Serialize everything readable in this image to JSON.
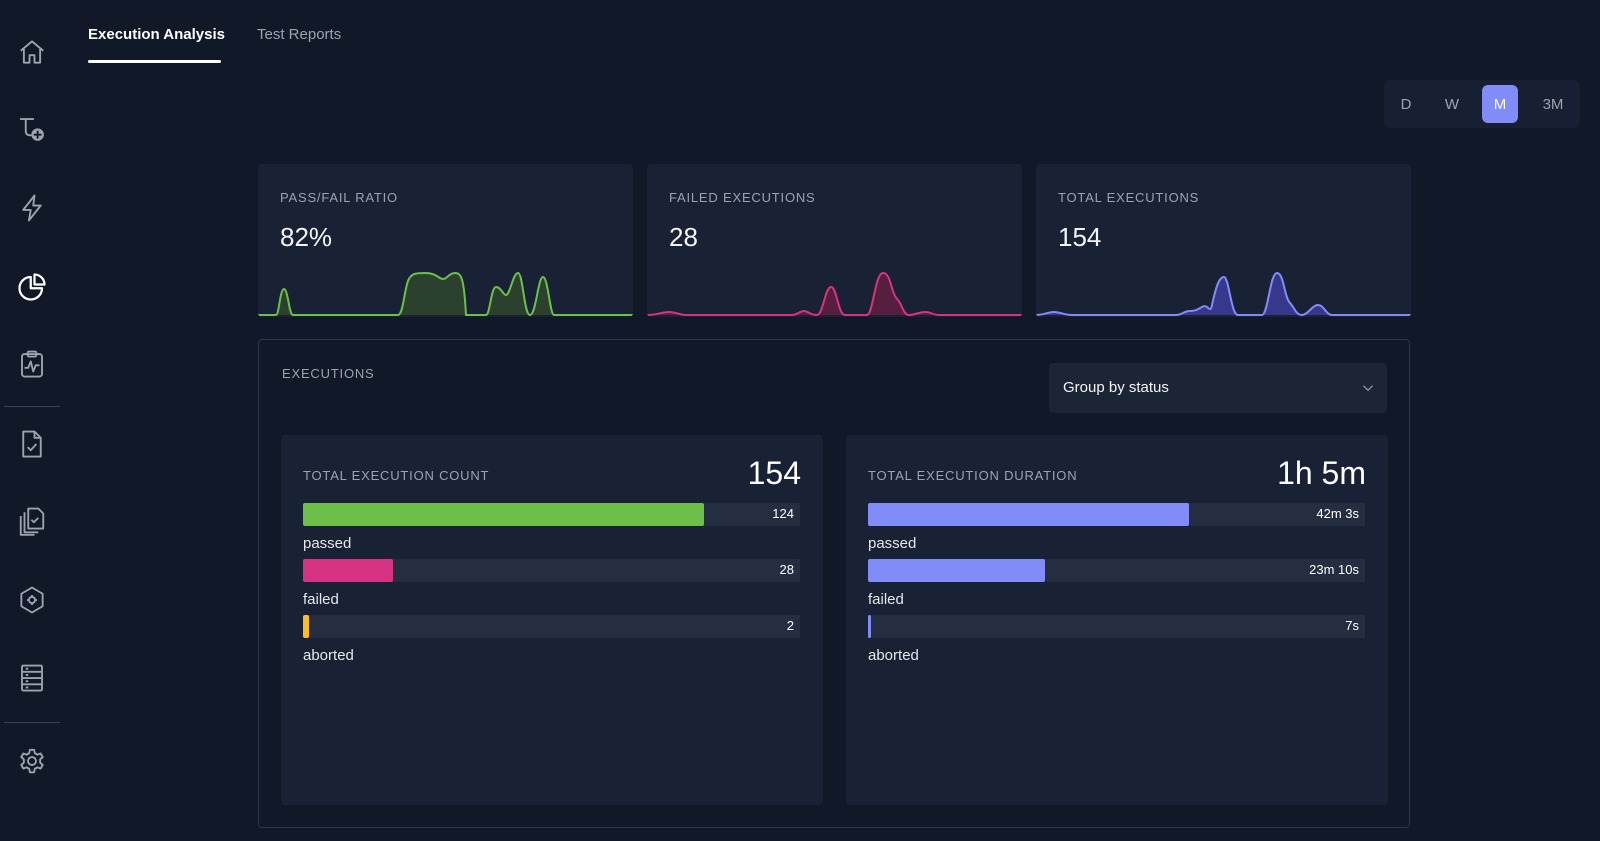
{
  "tabs": [
    {
      "label": "Execution Analysis",
      "active": true
    },
    {
      "label": "Test Reports",
      "active": false
    }
  ],
  "sidebar": {
    "icons": [
      "home-icon",
      "add-flow-icon",
      "lightning-icon",
      "pie-chart-icon",
      "clipboard-pulse-icon",
      "document-check-icon",
      "documents-check-icon",
      "shield-gear-icon",
      "server-icon",
      "gear-icon"
    ],
    "active": "pie-chart-icon"
  },
  "time_range": {
    "options": [
      "D",
      "W",
      "M",
      "3M"
    ],
    "selected": "M"
  },
  "stats": [
    {
      "label": "PASS/FAIL RATIO",
      "value": "82%",
      "color": "#6cc04a",
      "fill": "#2f4a2c"
    },
    {
      "label": "FAILED EXECUTIONS",
      "value": "28",
      "color": "#d63384",
      "fill": "#5e1f40"
    },
    {
      "label": "TOTAL EXECUTIONS",
      "value": "154",
      "color": "#818cf8",
      "fill": "#3b3a95"
    }
  ],
  "executions": {
    "title": "EXECUTIONS",
    "group_by": "Group by status",
    "count": {
      "label": "TOTAL EXECUTION COUNT",
      "total": "154",
      "rows": [
        {
          "name": "passed",
          "value": "124",
          "fraction": 0.806,
          "color": "#6cc04a"
        },
        {
          "name": "failed",
          "value": "28",
          "fraction": 0.182,
          "color": "#d63384"
        },
        {
          "name": "aborted",
          "value": "2",
          "fraction": 0.013,
          "color": "#fbbf24"
        }
      ]
    },
    "duration": {
      "label": "TOTAL EXECUTION DURATION",
      "total": "1h 5m",
      "rows": [
        {
          "name": "passed",
          "value": "42m 3s",
          "fraction": 0.645,
          "color": "#818cf8"
        },
        {
          "name": "failed",
          "value": "23m 10s",
          "fraction": 0.356,
          "color": "#818cf8"
        },
        {
          "name": "aborted",
          "value": "7s",
          "fraction": 0.002,
          "color": "#818cf8"
        }
      ]
    }
  }
}
